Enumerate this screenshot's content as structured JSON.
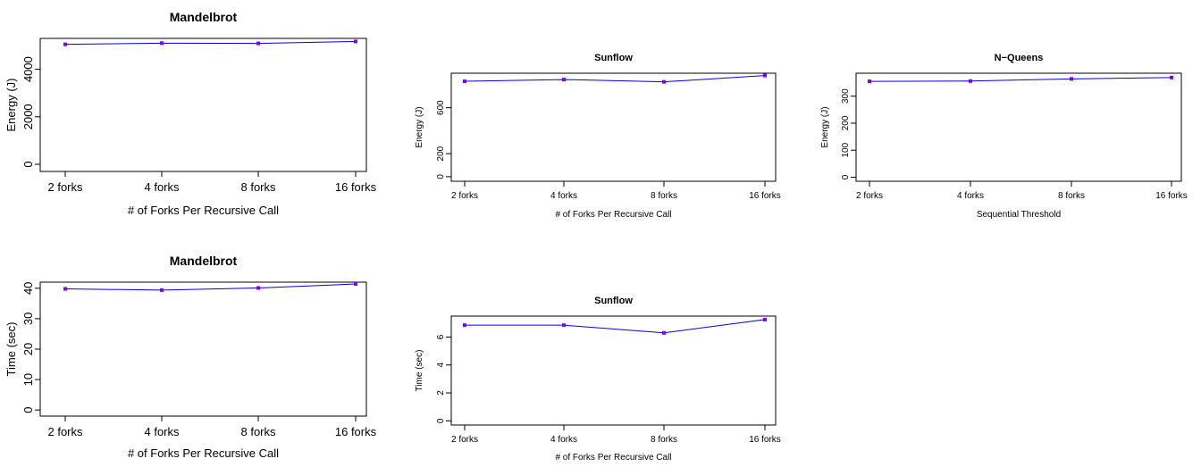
{
  "colors": {
    "line": "#0000ee",
    "point": "#7f00ff"
  },
  "chart_data": [
    {
      "type": "line",
      "title": "Mandelbrot",
      "xlabel": "# of Forks Per Recursive Call",
      "ylabel": "Energy (J)",
      "categories": [
        "2 forks",
        "4 forks",
        "8 forks",
        "16 forks"
      ],
      "values": [
        5050,
        5100,
        5090,
        5170
      ],
      "yticks": [
        0,
        2000,
        4000
      ],
      "ylim": [
        -300,
        5300
      ]
    },
    {
      "type": "line",
      "title": "Sunflow",
      "xlabel": "# of Forks Per Recursive Call",
      "ylabel": "Energy (J)",
      "categories": [
        "2 forks",
        "4 forks",
        "8 forks",
        "16 forks"
      ],
      "values": [
        830,
        845,
        825,
        880
      ],
      "yticks": [
        0,
        200,
        600
      ],
      "ylim": [
        -40,
        900
      ]
    },
    {
      "type": "line",
      "title": "N−Queens",
      "xlabel": "Sequential Threshold",
      "ylabel": "Energy (J)",
      "categories": [
        "2 forks",
        "4 forks",
        "8 forks",
        "16 forks"
      ],
      "values": [
        355,
        356,
        364,
        369
      ],
      "yticks": [
        0,
        100,
        200,
        300
      ],
      "ylim": [
        -15,
        385
      ]
    },
    {
      "type": "line",
      "title": "Mandelbrot",
      "xlabel": "# of Forks Per Recursive Call",
      "ylabel": "Time (sec)",
      "categories": [
        "2 forks",
        "4 forks",
        "8 forks",
        "16 forks"
      ],
      "values": [
        39.8,
        39.4,
        40.1,
        41.4
      ],
      "yticks": [
        0,
        10,
        20,
        30,
        40
      ],
      "ylim": [
        -2,
        42
      ]
    },
    {
      "type": "line",
      "title": "Sunflow",
      "xlabel": "# of Forks Per Recursive Call",
      "ylabel": "Time (sec)",
      "categories": [
        "2 forks",
        "4 forks",
        "8 forks",
        "16 forks"
      ],
      "values": [
        6.85,
        6.85,
        6.3,
        7.25
      ],
      "yticks": [
        0,
        2,
        4,
        6
      ],
      "ylim": [
        -0.3,
        7.5
      ]
    }
  ]
}
